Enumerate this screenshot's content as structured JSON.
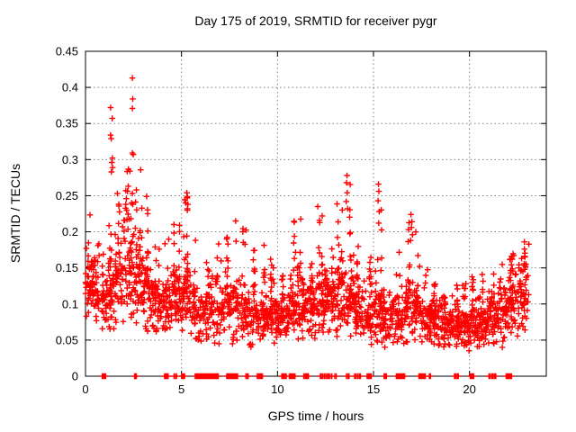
{
  "chart_data": {
    "type": "scatter",
    "title": "Day 175 of 2019, SRMTID for receiver pygr",
    "xlabel": "GPS time / hours",
    "ylabel": "SRMTID / TECUs",
    "xlim": [
      0,
      24
    ],
    "ylim": [
      0,
      0.45
    ],
    "xticks": [
      0,
      5,
      10,
      15,
      20
    ],
    "xtick_labels": [
      "0",
      "5",
      "10",
      "15",
      "20"
    ],
    "yticks": [
      0,
      0.05,
      0.1,
      0.15,
      0.2,
      0.25,
      0.3,
      0.35,
      0.4,
      0.45
    ],
    "ytick_labels": [
      "0",
      "0.05",
      "0.1",
      "0.15",
      "0.2",
      "0.25",
      "0.3",
      "0.35",
      "0.4",
      "0.45"
    ],
    "grid": true,
    "legend": false,
    "marker": "plus",
    "marker_color": "#ff0000",
    "grid_color": "#808080",
    "axis_color": "#000000",
    "background_color": "#ffffff",
    "bins_schema": [
      "x_start",
      "x_end",
      "count",
      "y_min",
      "y_typical",
      "y_max"
    ],
    "density_bins": [
      [
        0.0,
        0.5,
        55,
        0.075,
        0.125,
        0.225
      ],
      [
        0.5,
        1.0,
        45,
        0.065,
        0.105,
        0.185
      ],
      [
        1.0,
        1.5,
        55,
        0.065,
        0.115,
        0.26
      ],
      [
        1.5,
        2.0,
        50,
        0.07,
        0.13,
        0.26
      ],
      [
        2.0,
        2.5,
        55,
        0.08,
        0.15,
        0.31
      ],
      [
        2.5,
        3.0,
        55,
        0.07,
        0.14,
        0.3
      ],
      [
        3.0,
        3.5,
        55,
        0.06,
        0.115,
        0.26
      ],
      [
        3.5,
        4.0,
        50,
        0.06,
        0.1,
        0.185
      ],
      [
        4.0,
        4.5,
        50,
        0.055,
        0.1,
        0.21
      ],
      [
        4.5,
        5.0,
        50,
        0.06,
        0.11,
        0.215
      ],
      [
        5.0,
        5.5,
        55,
        0.05,
        0.11,
        0.255
      ],
      [
        5.5,
        6.0,
        45,
        0.05,
        0.09,
        0.19
      ],
      [
        6.0,
        6.5,
        40,
        0.04,
        0.085,
        0.16
      ],
      [
        6.5,
        7.0,
        42,
        0.045,
        0.09,
        0.185
      ],
      [
        7.0,
        7.5,
        45,
        0.05,
        0.1,
        0.21
      ],
      [
        7.5,
        8.0,
        42,
        0.045,
        0.09,
        0.195
      ],
      [
        8.0,
        8.5,
        42,
        0.05,
        0.085,
        0.215
      ],
      [
        8.5,
        9.0,
        45,
        0.04,
        0.085,
        0.18
      ],
      [
        9.0,
        9.5,
        50,
        0.05,
        0.08,
        0.19
      ],
      [
        9.5,
        10.0,
        50,
        0.045,
        0.085,
        0.175
      ],
      [
        10.0,
        10.5,
        50,
        0.05,
        0.08,
        0.145
      ],
      [
        10.5,
        11.0,
        55,
        0.05,
        0.09,
        0.215
      ],
      [
        11.0,
        11.5,
        55,
        0.05,
        0.1,
        0.22
      ],
      [
        11.5,
        12.0,
        50,
        0.05,
        0.09,
        0.18
      ],
      [
        12.0,
        12.5,
        55,
        0.055,
        0.1,
        0.235
      ],
      [
        12.5,
        13.0,
        55,
        0.06,
        0.11,
        0.24
      ],
      [
        13.0,
        13.5,
        55,
        0.055,
        0.11,
        0.26
      ],
      [
        13.5,
        14.0,
        55,
        0.05,
        0.105,
        0.28
      ],
      [
        14.0,
        14.5,
        50,
        0.05,
        0.09,
        0.2
      ],
      [
        14.5,
        15.0,
        45,
        0.04,
        0.08,
        0.17
      ],
      [
        15.0,
        15.5,
        50,
        0.04,
        0.09,
        0.27
      ],
      [
        15.5,
        16.0,
        45,
        0.04,
        0.08,
        0.15
      ],
      [
        16.0,
        16.5,
        45,
        0.04,
        0.08,
        0.175
      ],
      [
        16.5,
        17.0,
        45,
        0.045,
        0.09,
        0.22
      ],
      [
        17.0,
        17.5,
        50,
        0.05,
        0.09,
        0.225
      ],
      [
        17.5,
        18.0,
        45,
        0.04,
        0.08,
        0.15
      ],
      [
        18.0,
        18.5,
        50,
        0.04,
        0.075,
        0.13
      ],
      [
        18.5,
        19.0,
        50,
        0.04,
        0.07,
        0.12
      ],
      [
        19.0,
        19.5,
        50,
        0.04,
        0.07,
        0.135
      ],
      [
        19.5,
        20.0,
        50,
        0.035,
        0.065,
        0.13
      ],
      [
        20.0,
        20.5,
        50,
        0.04,
        0.07,
        0.14
      ],
      [
        20.5,
        21.0,
        50,
        0.04,
        0.075,
        0.15
      ],
      [
        21.0,
        21.5,
        50,
        0.045,
        0.08,
        0.16
      ],
      [
        21.5,
        22.0,
        50,
        0.04,
        0.085,
        0.165
      ],
      [
        22.0,
        22.5,
        55,
        0.05,
        0.1,
        0.17
      ],
      [
        22.5,
        23.1,
        55,
        0.06,
        0.11,
        0.185
      ]
    ],
    "outliers": [
      [
        2.44,
        0.413
      ],
      [
        2.46,
        0.384
      ],
      [
        2.44,
        0.371
      ],
      [
        1.31,
        0.372
      ],
      [
        1.39,
        0.357
      ],
      [
        1.31,
        0.334
      ],
      [
        1.34,
        0.329
      ],
      [
        2.44,
        0.309
      ],
      [
        2.49,
        0.307
      ],
      [
        1.4,
        0.302
      ],
      [
        1.37,
        0.296
      ],
      [
        1.41,
        0.289
      ],
      [
        1.35,
        0.283
      ],
      [
        2.31,
        0.284
      ],
      [
        2.1,
        0.257
      ],
      [
        2.44,
        0.253
      ],
      [
        1.66,
        0.253
      ],
      [
        2.13,
        0.246
      ],
      [
        2.4,
        0.24
      ],
      [
        2.46,
        0.238
      ],
      [
        2.1,
        0.238
      ],
      [
        2.14,
        0.23
      ],
      [
        5.28,
        0.254
      ],
      [
        5.3,
        0.247
      ],
      [
        5.22,
        0.24
      ],
      [
        5.33,
        0.238
      ],
      [
        5.31,
        0.232
      ],
      [
        7.82,
        0.215
      ],
      [
        12.1,
        0.235
      ],
      [
        12.33,
        0.222
      ],
      [
        13.62,
        0.278
      ],
      [
        13.6,
        0.268
      ],
      [
        13.63,
        0.254
      ],
      [
        13.58,
        0.242
      ],
      [
        13.65,
        0.232
      ],
      [
        15.26,
        0.266
      ],
      [
        15.28,
        0.256
      ],
      [
        15.24,
        0.243
      ],
      [
        15.3,
        0.228
      ],
      [
        15.27,
        0.212
      ],
      [
        16.95,
        0.224
      ],
      [
        17.0,
        0.214
      ],
      [
        16.98,
        0.206
      ],
      [
        17.03,
        0.196
      ],
      [
        16.93,
        0.188
      ],
      [
        22.86,
        0.186
      ],
      [
        22.86,
        0.176
      ],
      [
        22.87,
        0.166
      ],
      [
        22.85,
        0.156
      ],
      [
        22.88,
        0.148
      ]
    ],
    "zero_clusters_schema": [
      "x_start",
      "x_end",
      "count"
    ],
    "zero_clusters": [
      [
        0.88,
        1.04,
        4
      ],
      [
        2.55,
        2.66,
        3
      ],
      [
        4.12,
        4.3,
        5
      ],
      [
        4.62,
        4.75,
        3
      ],
      [
        5.0,
        5.16,
        6
      ],
      [
        5.72,
        6.35,
        26
      ],
      [
        6.42,
        6.6,
        5
      ],
      [
        6.68,
        6.92,
        6
      ],
      [
        7.36,
        7.92,
        24
      ],
      [
        8.36,
        8.48,
        3
      ],
      [
        8.95,
        9.22,
        6
      ],
      [
        10.22,
        10.45,
        5
      ],
      [
        10.62,
        10.92,
        6
      ],
      [
        11.38,
        11.62,
        5
      ],
      [
        12.22,
        12.82,
        9
      ],
      [
        12.98,
        13.06,
        2
      ],
      [
        13.6,
        13.72,
        3
      ],
      [
        14.02,
        14.32,
        5
      ],
      [
        14.66,
        14.88,
        7
      ],
      [
        15.55,
        15.68,
        3
      ],
      [
        16.18,
        16.62,
        13
      ],
      [
        17.36,
        17.7,
        9
      ],
      [
        17.9,
        17.97,
        2
      ],
      [
        19.22,
        19.42,
        4
      ],
      [
        20.03,
        20.22,
        4
      ],
      [
        21.02,
        21.38,
        6
      ],
      [
        21.9,
        22.18,
        9
      ]
    ]
  }
}
